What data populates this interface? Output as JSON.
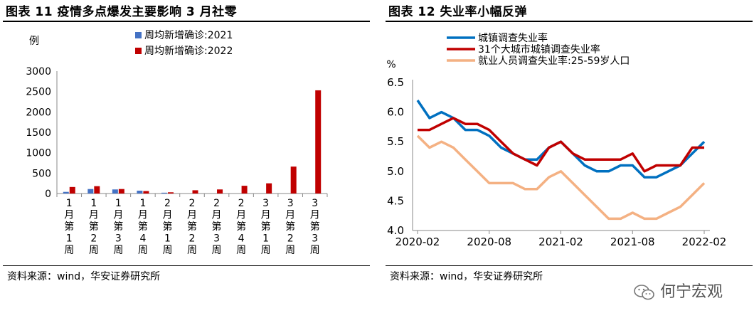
{
  "left": {
    "figure_title": "图表 11  疫情多点爆发主要影响 3 月社零",
    "source": "资料来源：wind，华安证券研究所"
  },
  "right": {
    "figure_title": "图表 12  失业率小幅反弹",
    "source": "资料来源：wind，华安证券研究所"
  },
  "brand": {
    "name": "何宁宏观"
  },
  "colors": {
    "blue": "#4472C4",
    "red": "#C00000",
    "line_blue": "#0070C0",
    "line_red": "#C00000",
    "line_peach": "#F4B183"
  },
  "chart_data": [
    {
      "type": "bar",
      "ylabel": "例",
      "ylim": [
        0,
        3000
      ],
      "yticks": [
        0,
        500,
        1000,
        1500,
        2000,
        2500,
        3000
      ],
      "categories": [
        "1月第1周",
        "1月第2周",
        "1月第3周",
        "1月第4周",
        "2月第1周",
        "2月第2周",
        "2月第3周",
        "2月第4周",
        "3月第1周",
        "3月第2周",
        "3月第3周"
      ],
      "series": [
        {
          "name": "周均新增确诊:2021",
          "values": [
            40,
            110,
            100,
            70,
            20,
            0,
            0,
            0,
            0,
            0,
            0
          ]
        },
        {
          "name": "周均新增确诊:2022",
          "values": [
            160,
            180,
            110,
            60,
            30,
            80,
            100,
            190,
            250,
            660,
            2530
          ]
        }
      ]
    },
    {
      "type": "line",
      "ylabel": "%",
      "ylim": [
        4.0,
        6.5
      ],
      "yticks": [
        "4.0",
        "4.5",
        "5.0",
        "5.5",
        "6.0",
        "6.5"
      ],
      "xticks": [
        "2020-02",
        "2020-08",
        "2021-02",
        "2021-08",
        "2022-02"
      ],
      "x": [
        "2020-02",
        "2020-03",
        "2020-04",
        "2020-05",
        "2020-06",
        "2020-07",
        "2020-08",
        "2020-09",
        "2020-10",
        "2020-11",
        "2020-12",
        "2021-01",
        "2021-02",
        "2021-03",
        "2021-04",
        "2021-05",
        "2021-06",
        "2021-07",
        "2021-08",
        "2021-09",
        "2021-10",
        "2021-11",
        "2021-12",
        "2022-01",
        "2022-02"
      ],
      "series": [
        {
          "name": "城镇调查失业率",
          "values": [
            6.2,
            5.9,
            6.0,
            5.9,
            5.7,
            5.7,
            5.6,
            5.4,
            5.3,
            5.2,
            5.2,
            5.4,
            5.5,
            5.3,
            5.1,
            5.0,
            5.0,
            5.1,
            5.1,
            4.9,
            4.9,
            5.0,
            5.1,
            5.3,
            5.5
          ]
        },
        {
          "name": "31个大城市城镇调查失业率",
          "values": [
            5.7,
            5.7,
            5.8,
            5.9,
            5.8,
            5.8,
            5.7,
            5.5,
            5.3,
            5.2,
            5.1,
            5.4,
            5.5,
            5.3,
            5.2,
            5.2,
            5.2,
            5.2,
            5.3,
            5.0,
            5.1,
            5.1,
            5.1,
            5.4,
            5.4
          ]
        },
        {
          "name": "就业人员调查失业率:25-59岁人口",
          "values": [
            5.6,
            5.4,
            5.5,
            5.4,
            5.2,
            5.0,
            4.8,
            4.8,
            4.8,
            4.7,
            4.7,
            4.9,
            5.0,
            4.8,
            4.6,
            4.4,
            4.2,
            4.2,
            4.3,
            4.2,
            4.2,
            4.3,
            4.4,
            4.6,
            4.8
          ]
        }
      ]
    }
  ]
}
